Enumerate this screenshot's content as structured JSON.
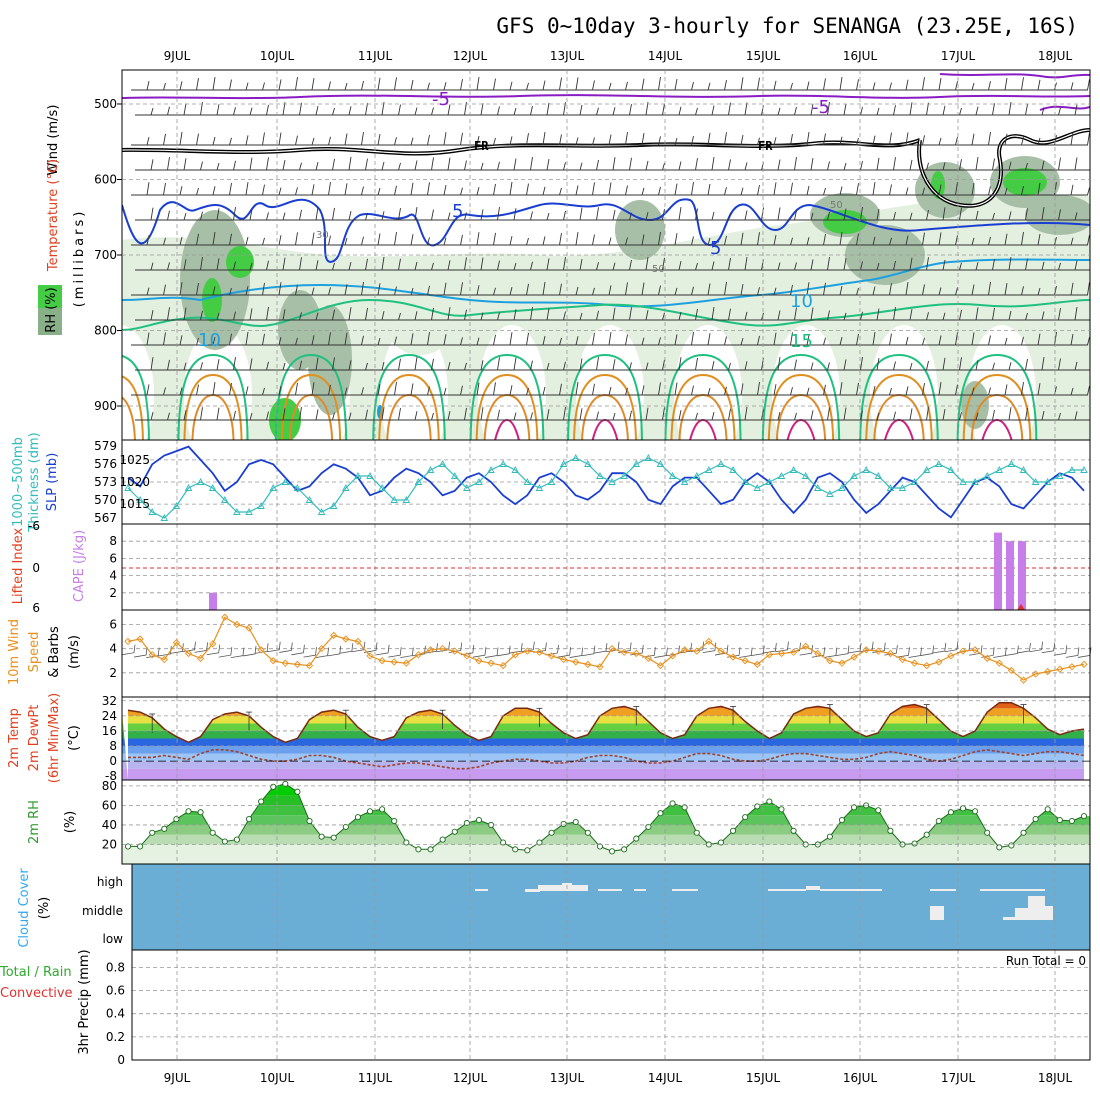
{
  "title": "GFS 0~10day 3-hourly for SENANGA (23.25E, 16S)",
  "days": [
    "9JUL",
    "10JUL",
    "11JUL",
    "12JUL",
    "13JUL",
    "14JUL",
    "15JUL",
    "16JUL",
    "17JUL",
    "18JUL"
  ],
  "colors": {
    "temperature": "#1a3fd0",
    "freezing": "#000000",
    "rh_light": "#e3efdf",
    "rh_mid": "#a7bfa7",
    "rh_dark": "#7ea37e",
    "rh_bright": "#44cc44",
    "slp": "#1a3fd0",
    "thickness": "#33bbbb",
    "cape": "#c77ee8",
    "wind": "#e8901c",
    "cloud": "#6aaed6",
    "rh2m": "#2f9a2f"
  },
  "panels": {
    "upper_air": {
      "ylabel_wind": "Wind (m/s)",
      "ylabel_temp": "Temperature (°C)",
      "ylabel_rh": "RH (%)",
      "ylabel_units": "(millibars)",
      "yticks": [
        "500",
        "600",
        "700",
        "800",
        "900"
      ],
      "contour_labels": [
        "-5",
        "-5",
        "FR",
        "FR",
        "5",
        "5",
        "10",
        "10",
        "15",
        "30",
        "50",
        "50"
      ]
    },
    "slp": {
      "ylabel_a": "1000~500mb",
      "ylabel_b": "Thickness (dm)",
      "ylabel_c": "SLP (mb)",
      "left_ticks": [
        "579",
        "576",
        "573",
        "570",
        "567"
      ],
      "right_ticks": [
        "1025",
        "1020",
        "1015"
      ]
    },
    "cape": {
      "ylabel_a": "Lifted Index",
      "ylabel_b": "CAPE (J/kg)",
      "left_ticks": [
        "-6",
        "0",
        "6"
      ],
      "right_ticks": [
        "8",
        "6",
        "4",
        "2"
      ]
    },
    "wind10m": {
      "ylabel_a": "10m Wind",
      "ylabel_b": "Speed",
      "ylabel_c": "& Barbs",
      "ylabel_d": "(m/s)",
      "yticks": [
        "6",
        "4",
        "2"
      ]
    },
    "temp2m": {
      "ylabel_a": "2m Temp",
      "ylabel_b": "2m DewPt",
      "ylabel_c": "(6hr Min/Max)",
      "ylabel_d": "(°C)",
      "yticks": [
        "32",
        "24",
        "16",
        "8",
        "0",
        "-8"
      ]
    },
    "rh2m": {
      "ylabel_a": "2m RH",
      "ylabel_b": "(%)",
      "yticks": [
        "80",
        "60",
        "40",
        "20"
      ]
    },
    "cloud": {
      "ylabel_a": "Cloud Cover",
      "ylabel_b": "(%)",
      "levels": [
        "high",
        "middle",
        "low"
      ]
    },
    "precip": {
      "ylabel_a": "Total / Rain",
      "ylabel_b": "Convective",
      "ylabel_c": "3hr Precip (mm)",
      "yticks": [
        "0.8",
        "0.6",
        "0.4",
        "0.2",
        "0"
      ],
      "run_total": "Run Total = 0"
    }
  },
  "chart_data": [
    {
      "type": "line",
      "name": "slp",
      "x_unit": "days since start (3-hourly)",
      "series": [
        {
          "name": "SLP (mb)",
          "values": [
            1021,
            1019,
            1024,
            1026,
            1027,
            1028,
            1025,
            1022,
            1018,
            1020,
            1024,
            1025,
            1024,
            1021,
            1018,
            1019,
            1022,
            1024,
            1023,
            1021,
            1017,
            1018,
            1021,
            1023,
            1022,
            1020,
            1017,
            1018,
            1021,
            1022,
            1020,
            1017,
            1015,
            1017,
            1021,
            1022,
            1020,
            1017,
            1016,
            1018,
            1022,
            1022,
            1020,
            1016,
            1015,
            1019,
            1021,
            1021,
            1018,
            1015,
            1016,
            1020,
            1022,
            1020,
            1016,
            1013,
            1016,
            1021,
            1022,
            1020,
            1016,
            1013,
            1015,
            1018,
            1021,
            1020,
            1017,
            1014,
            1012,
            1016,
            1020,
            1021,
            1019,
            1015,
            1014,
            1017,
            1020,
            1022,
            1021,
            1018
          ]
        },
        {
          "name": "Thickness (dm)",
          "values": [
            572,
            570,
            568,
            567,
            569,
            572,
            573,
            572,
            570,
            568,
            568,
            569,
            572,
            573,
            572,
            570,
            568,
            569,
            572,
            574,
            574,
            572,
            570,
            570,
            573,
            575,
            576,
            574,
            572,
            573,
            575,
            576,
            575,
            573,
            572,
            573,
            576,
            577,
            576,
            574,
            573,
            574,
            576,
            577,
            576,
            574,
            573,
            574,
            575,
            576,
            575,
            573,
            572,
            573,
            574,
            575,
            574,
            572,
            571,
            572,
            574,
            575,
            574,
            572,
            572,
            573,
            575,
            576,
            575,
            573,
            573,
            574,
            575,
            576,
            575,
            573,
            573,
            574,
            575,
            575
          ]
        }
      ]
    },
    {
      "type": "bar",
      "name": "cape",
      "categories": [
        "9JUL 09Z",
        "17JUL 09Z",
        "17JUL 12Z",
        "17JUL 15Z"
      ],
      "values": [
        2,
        9,
        8,
        8
      ],
      "ylim": [
        0,
        10
      ]
    },
    {
      "type": "line",
      "name": "wind10m_speed",
      "series": [
        {
          "name": "Speed (m/s)",
          "values": [
            4.6,
            4.8,
            3.5,
            3.1,
            4.5,
            3.6,
            3.2,
            4.4,
            6.6,
            6.0,
            5.7,
            3.9,
            3.0,
            2.8,
            2.7,
            2.6,
            4.0,
            5.1,
            4.8,
            4.6,
            3.4,
            3.0,
            2.9,
            2.8,
            3.5,
            3.9,
            4.0,
            3.8,
            3.4,
            3.0,
            2.8,
            2.6,
            3.5,
            3.8,
            3.7,
            3.4,
            3.1,
            2.9,
            2.7,
            2.5,
            4.0,
            3.7,
            3.6,
            3.2,
            2.6,
            3.4,
            3.9,
            3.8,
            4.6,
            3.8,
            3.3,
            3.0,
            2.7,
            3.5,
            3.6,
            3.7,
            4.2,
            3.6,
            3.0,
            2.8,
            3.3,
            3.9,
            3.8,
            3.6,
            3.1,
            2.8,
            2.6,
            2.9,
            3.4,
            3.8,
            3.9,
            3.2,
            2.8,
            2.2,
            1.4,
            1.9,
            2.1,
            2.3,
            2.5,
            2.7
          ]
        }
      ],
      "ylim": [
        0,
        7
      ]
    },
    {
      "type": "area",
      "name": "temp2m",
      "series": [
        {
          "name": "2m Temp (°C)",
          "values": [
            27,
            26,
            23,
            17,
            13,
            10,
            13,
            22,
            25,
            26,
            24,
            18,
            13,
            10,
            12,
            22,
            26,
            27,
            25,
            18,
            13,
            11,
            13,
            23,
            26,
            27,
            25,
            19,
            14,
            11,
            13,
            24,
            28,
            28,
            26,
            20,
            15,
            12,
            14,
            24,
            28,
            29,
            27,
            21,
            15,
            12,
            14,
            24,
            28,
            29,
            27,
            21,
            16,
            12,
            15,
            25,
            28,
            29,
            28,
            22,
            16,
            13,
            15,
            25,
            29,
            30,
            28,
            22,
            16,
            13,
            16,
            26,
            31,
            31,
            28,
            23,
            17,
            14,
            16,
            17
          ]
        },
        {
          "name": "2m DewPt (°C)",
          "values": [
            2,
            2,
            2,
            3,
            2,
            1,
            4,
            6,
            6,
            5,
            3,
            1,
            0,
            0,
            1,
            3,
            3,
            2,
            0,
            -1,
            -2,
            -3,
            -2,
            -1,
            -1,
            -2,
            -3,
            -4,
            -4,
            -3,
            -1,
            0,
            1,
            1,
            0,
            -1,
            -1,
            0,
            2,
            3,
            3,
            2,
            0,
            -1,
            -1,
            0,
            2,
            4,
            4,
            3,
            1,
            0,
            0,
            1,
            3,
            4,
            4,
            3,
            2,
            1,
            1,
            2,
            4,
            5,
            4,
            3,
            1,
            0,
            1,
            3,
            5,
            6,
            5,
            4,
            3,
            4,
            5,
            5,
            4,
            3
          ]
        }
      ],
      "ylim": [
        -8,
        34
      ]
    },
    {
      "type": "area",
      "name": "rh2m",
      "series": [
        {
          "name": "2m RH (%)",
          "values": [
            18,
            18,
            32,
            36,
            46,
            54,
            53,
            32,
            23,
            25,
            46,
            64,
            79,
            82,
            74,
            44,
            28,
            27,
            38,
            48,
            54,
            56,
            44,
            22,
            15,
            15,
            25,
            33,
            42,
            45,
            40,
            22,
            15,
            14,
            22,
            32,
            41,
            43,
            32,
            18,
            13,
            15,
            26,
            38,
            52,
            62,
            58,
            32,
            20,
            22,
            34,
            48,
            59,
            64,
            56,
            34,
            20,
            20,
            28,
            45,
            58,
            60,
            55,
            34,
            20,
            21,
            30,
            44,
            53,
            57,
            54,
            32,
            17,
            19,
            32,
            46,
            56,
            45,
            44,
            49
          ]
        }
      ],
      "ylim": [
        0,
        90
      ]
    }
  ]
}
